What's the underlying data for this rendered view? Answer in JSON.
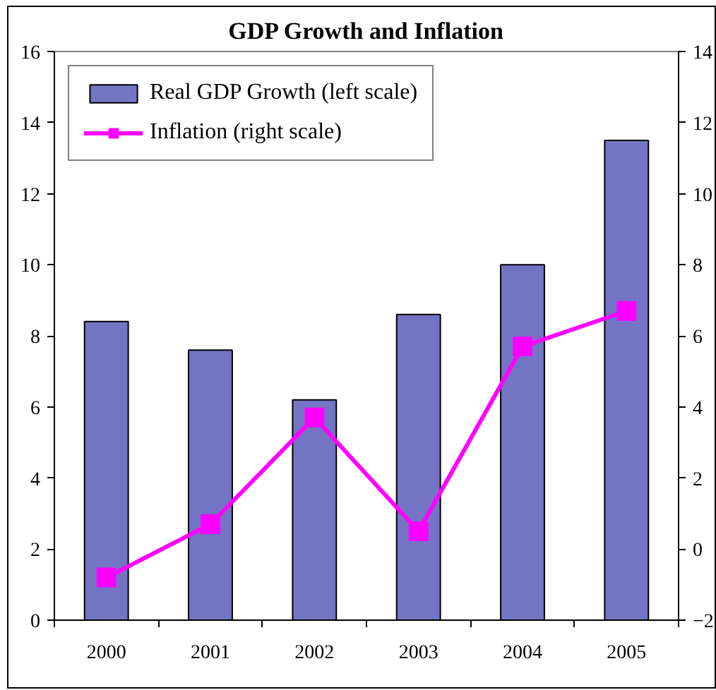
{
  "chart_data": {
    "type": "bar",
    "title": "GDP Growth and Inflation",
    "categories": [
      "2000",
      "2001",
      "2002",
      "2003",
      "2004",
      "2005"
    ],
    "series": [
      {
        "name": "Real GDP Growth (left scale)",
        "color": "#7474c4",
        "values": [
          8.4,
          7.6,
          6.2,
          8.6,
          10.0,
          13.5
        ]
      },
      {
        "name": "Inflation (right scale)",
        "type": "line",
        "axis": "y2",
        "color": "#ff00ff",
        "values": [
          -0.8,
          0.7,
          3.7,
          0.5,
          5.7,
          6.7
        ]
      }
    ],
    "ylim": [
      0,
      16
    ],
    "yticks": [
      0,
      2,
      4,
      6,
      8,
      10,
      12,
      14,
      16
    ],
    "y2lim": [
      -2,
      14
    ],
    "y2ticks": [
      -2,
      0,
      2,
      4,
      6,
      8,
      10,
      12,
      14
    ],
    "marker": "square",
    "legend": "top left"
  }
}
